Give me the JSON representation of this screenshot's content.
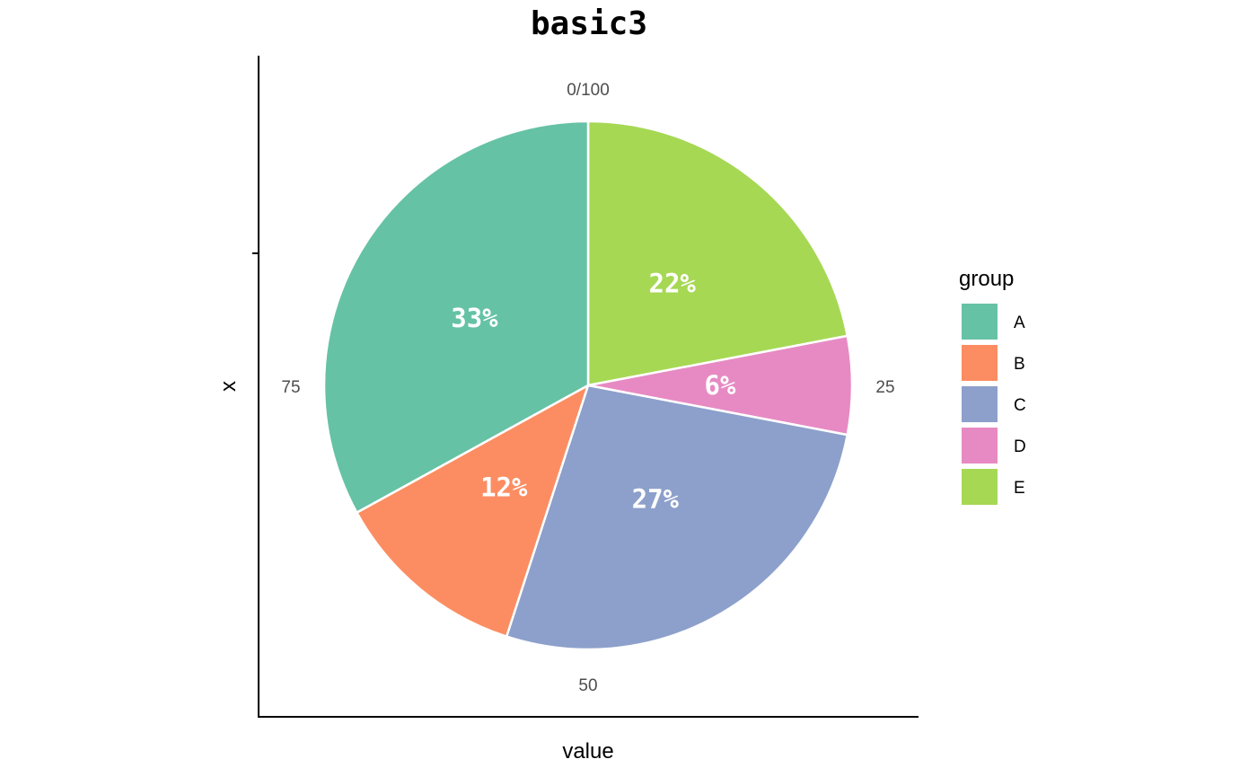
{
  "chart_data": {
    "type": "pie",
    "title": "basic3",
    "xlabel": "value",
    "ylabel": "x",
    "theta_ticks": [
      "0/100",
      "25",
      "50",
      "75"
    ],
    "legend": {
      "title": "group",
      "position": "right"
    },
    "slices": [
      {
        "group": "A",
        "value": 33,
        "label": "33%",
        "color": "#66C2A5"
      },
      {
        "group": "B",
        "value": 12,
        "label": "12%",
        "color": "#FC8D62"
      },
      {
        "group": "C",
        "value": 27,
        "label": "27%",
        "color": "#8DA0CB"
      },
      {
        "group": "D",
        "value": 6,
        "label": "6%",
        "color": "#E78AC3"
      },
      {
        "group": "E",
        "value": 22,
        "label": "22%",
        "color": "#A6D854"
      }
    ],
    "grid": false
  }
}
